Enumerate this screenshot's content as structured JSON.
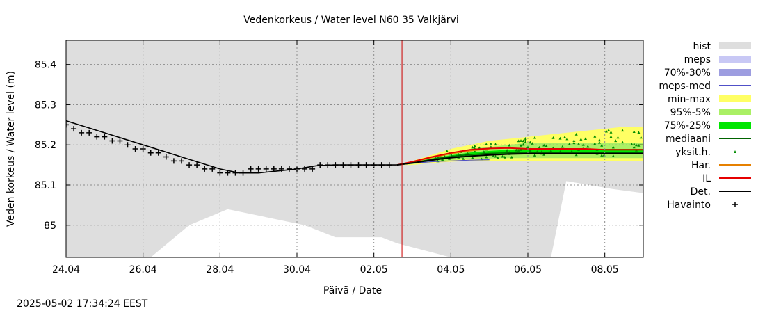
{
  "chart_data": {
    "type": "line",
    "title": "Vedenkorkeus / Water level   N60 35 Valkjärvi",
    "xlabel": "Päivä / Date",
    "ylabel": "Veden korkeus / Water level (m)",
    "x_ticks": [
      "24.04",
      "26.04",
      "28.04",
      "30.04",
      "02.05",
      "04.05",
      "06.05",
      "08.05"
    ],
    "y_ticks": [
      "85.4",
      "85.3",
      "85.2",
      "85.1",
      "85"
    ],
    "ylim": [
      84.92,
      85.46
    ],
    "xlim_days": [
      0,
      15
    ],
    "forecast_start": "02.05 17:34",
    "grid": true,
    "legend_position": "right",
    "colors": {
      "hist": "#dedede",
      "meps": "#c8c8f5",
      "meps_70_30": "#9d9de0",
      "meps_med": "#5050c8",
      "min_max": "#ffff64",
      "p95_5": "#aaf064",
      "p75_25": "#00e600",
      "mediaani": "#006400",
      "yksit": "#008c00",
      "har": "#e68000",
      "il": "#e60000",
      "det": "#000000",
      "havainto": "#000000",
      "now_line": "#cc0000"
    },
    "legend": [
      {
        "label": "hist",
        "kind": "box",
        "color": "#dedede"
      },
      {
        "label": "meps",
        "kind": "box",
        "color": "#c8c8f5"
      },
      {
        "label": "70%-30%",
        "kind": "box",
        "color": "#9d9de0"
      },
      {
        "label": "meps-med",
        "kind": "line",
        "color": "#5050c8"
      },
      {
        "label": "min-max",
        "kind": "box",
        "color": "#ffff64"
      },
      {
        "label": "95%-5%",
        "kind": "box",
        "color": "#aaf064"
      },
      {
        "label": "75%-25%",
        "kind": "box",
        "color": "#00e600"
      },
      {
        "label": "mediaani",
        "kind": "line",
        "color": "#006400"
      },
      {
        "label": "yksit.h.",
        "kind": "dot",
        "color": "#008c00"
      },
      {
        "label": "Har.",
        "kind": "line",
        "color": "#e68000"
      },
      {
        "label": "IL",
        "kind": "line",
        "color": "#e60000"
      },
      {
        "label": "Det.",
        "kind": "line",
        "color": "#000000"
      },
      {
        "label": "Havainto",
        "kind": "plus",
        "color": "#000000"
      }
    ],
    "hist_lower": {
      "x": [
        0,
        2.2,
        3.2,
        4.2,
        5.2,
        6.2,
        7.0,
        8.2,
        8.6,
        9.2,
        10.0,
        10.9,
        12.0,
        12.5,
        12.6,
        13.0,
        14.2,
        15.0
      ],
      "y": [
        84.92,
        84.92,
        85.0,
        85.04,
        85.02,
        85.0,
        84.97,
        84.97,
        84.955,
        84.94,
        84.92,
        84.92,
        84.92,
        84.92,
        84.92,
        85.11,
        85.09,
        85.08
      ]
    },
    "observed": {
      "x": [
        0.0,
        0.2,
        0.4,
        0.6,
        0.8,
        1.0,
        1.2,
        1.4,
        1.6,
        1.8,
        2.0,
        2.2,
        2.4,
        2.6,
        2.8,
        3.0,
        3.2,
        3.4,
        3.6,
        3.8,
        4.0,
        4.2,
        4.4,
        4.6,
        4.8,
        5.0,
        5.2,
        5.4,
        5.6,
        5.8,
        6.0,
        6.2,
        6.4,
        6.6,
        6.8,
        7.0,
        7.2,
        7.4,
        7.6,
        7.8,
        8.0,
        8.2,
        8.4
      ],
      "y": [
        85.25,
        85.24,
        85.23,
        85.23,
        85.22,
        85.22,
        85.21,
        85.21,
        85.2,
        85.19,
        85.19,
        85.18,
        85.18,
        85.17,
        85.16,
        85.16,
        85.15,
        85.15,
        85.14,
        85.14,
        85.13,
        85.13,
        85.13,
        85.13,
        85.14,
        85.14,
        85.14,
        85.14,
        85.14,
        85.14,
        85.14,
        85.14,
        85.14,
        85.15,
        85.15,
        85.15,
        85.15,
        85.15,
        85.15,
        85.15,
        85.15,
        85.15,
        85.15
      ]
    },
    "det_history": {
      "x": [
        0,
        1,
        2,
        3,
        4,
        4.5,
        5,
        5.5,
        6,
        6.5,
        7,
        8,
        8.6
      ],
      "y": [
        85.26,
        85.23,
        85.2,
        85.17,
        85.14,
        85.13,
        85.13,
        85.135,
        85.14,
        85.148,
        85.15,
        85.15,
        85.15
      ]
    },
    "bands": {
      "x": [
        8.6,
        9.0,
        9.5,
        10.0,
        10.5,
        11.0,
        11.5,
        12.0,
        12.5,
        13.0,
        13.5,
        14.0,
        14.5,
        15.0
      ],
      "min_max_low": [
        85.15,
        85.15,
        85.155,
        85.158,
        85.16,
        85.16,
        85.16,
        85.16,
        85.16,
        85.16,
        85.16,
        85.16,
        85.16,
        85.16
      ],
      "min_max_high": [
        85.15,
        85.16,
        85.175,
        85.19,
        85.2,
        85.21,
        85.215,
        85.22,
        85.225,
        85.23,
        85.235,
        85.24,
        85.245,
        85.245
      ],
      "p95_5_low": [
        85.15,
        85.152,
        85.158,
        85.162,
        85.165,
        85.166,
        85.167,
        85.167,
        85.167,
        85.167,
        85.167,
        85.167,
        85.167,
        85.167
      ],
      "p95_5_high": [
        85.15,
        85.158,
        85.17,
        85.18,
        85.19,
        85.195,
        85.2,
        85.205,
        85.205,
        85.205,
        85.205,
        85.205,
        85.205,
        85.205
      ],
      "p75_25_low": [
        85.15,
        85.154,
        85.162,
        85.168,
        85.172,
        85.175,
        85.176,
        85.177,
        85.177,
        85.177,
        85.177,
        85.177,
        85.177,
        85.177
      ],
      "p75_25_high": [
        85.15,
        85.156,
        85.166,
        85.174,
        85.181,
        85.185,
        85.188,
        85.19,
        85.19,
        85.19,
        85.19,
        85.19,
        85.19,
        85.19
      ],
      "mediaani": [
        85.15,
        85.155,
        85.164,
        85.171,
        85.176,
        85.179,
        85.18,
        85.18,
        85.18,
        85.18,
        85.18,
        85.18,
        85.18,
        85.18
      ],
      "meps_med": [
        85.15,
        85.154,
        85.158,
        85.16,
        85.162,
        85.163
      ]
    },
    "il_forecast": {
      "x": [
        8.6,
        9.0,
        9.5,
        10.0,
        10.5,
        11.0,
        11.5,
        12.0,
        12.5,
        13.0,
        13.5,
        14.0,
        14.5,
        15.0
      ],
      "y": [
        85.15,
        85.158,
        85.17,
        85.18,
        85.188,
        85.191,
        85.192,
        85.19,
        85.19,
        85.19,
        85.19,
        85.188,
        85.188,
        85.188
      ]
    },
    "har_forecast": {
      "x": [
        8.6,
        9.0,
        9.5,
        10.0,
        10.5,
        11.0
      ],
      "y": [
        85.15,
        85.157,
        85.168,
        85.178,
        85.185,
        85.19
      ]
    },
    "det_forecast": {
      "x": [
        8.6,
        9.0,
        9.5,
        10.0,
        10.5,
        11.0,
        11.5,
        12.0,
        12.5,
        13.0,
        13.5,
        14.0,
        14.5,
        15.0
      ],
      "y": [
        85.15,
        85.155,
        85.162,
        85.168,
        85.172,
        85.175,
        85.177,
        85.178,
        85.178,
        85.178,
        85.178,
        85.178,
        85.178,
        85.178
      ]
    }
  },
  "footer": {
    "timestamp": "2025-05-02 17:34:24 EEST"
  }
}
